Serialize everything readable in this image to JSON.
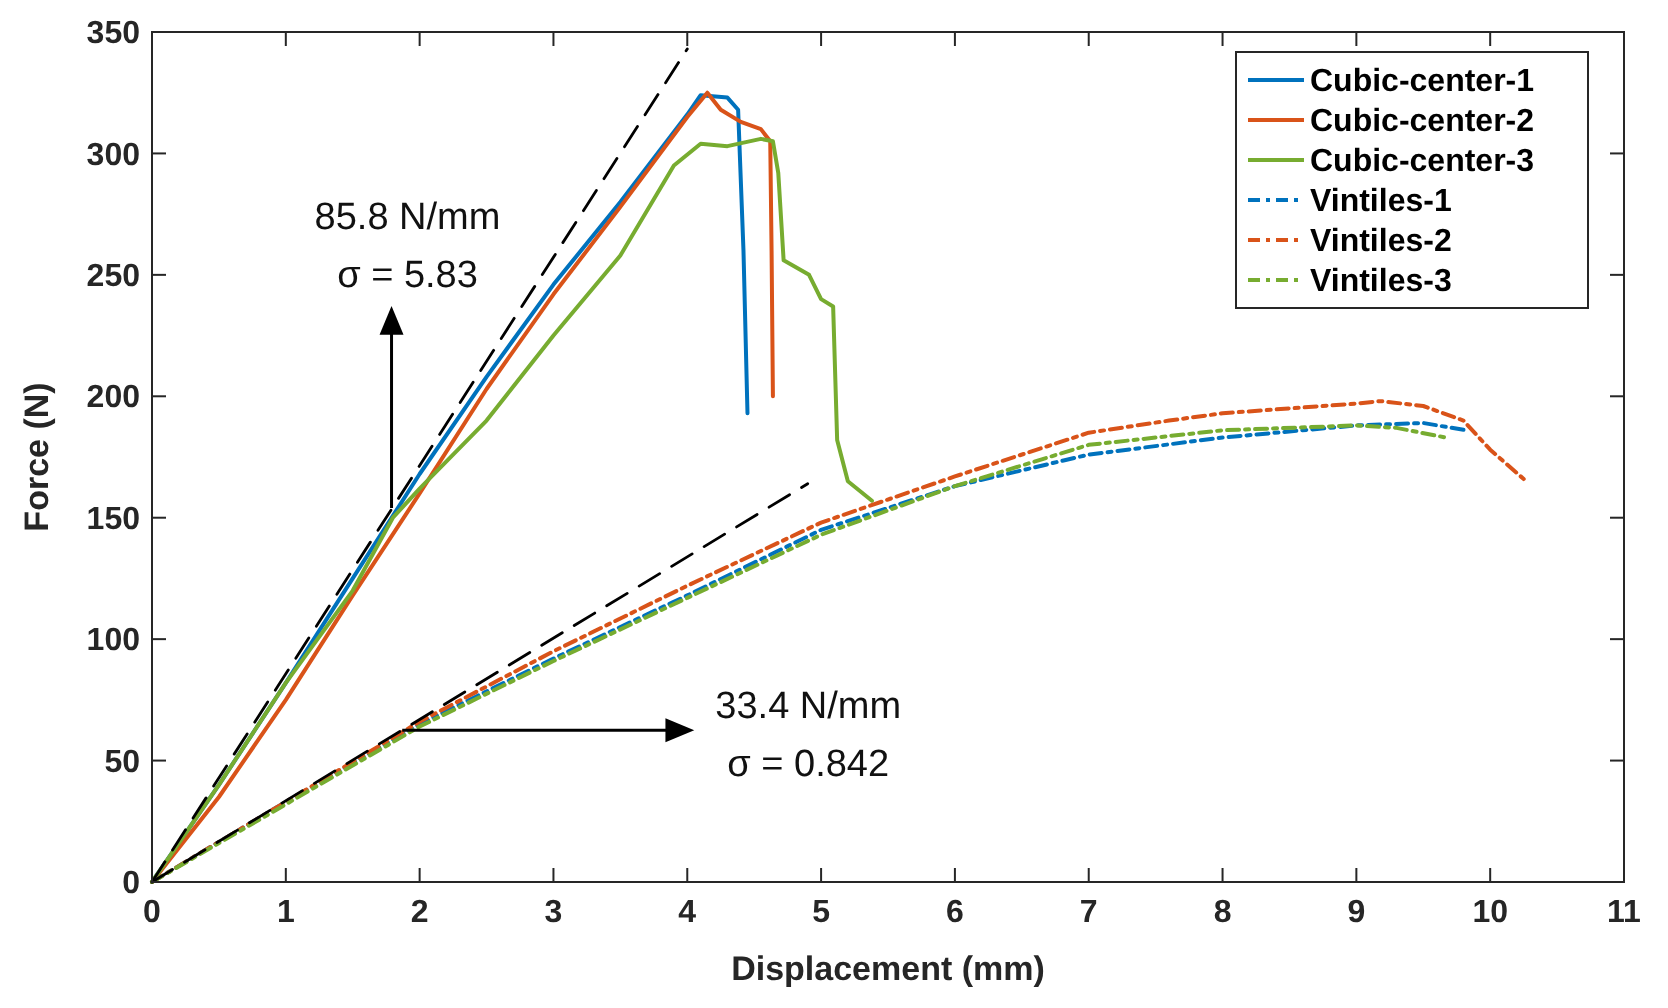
{
  "chart_data": {
    "type": "line",
    "xlabel": "Displacement (mm)",
    "ylabel": "Force (N)",
    "xlim": [
      0,
      11
    ],
    "xticks": [
      0,
      1,
      2,
      3,
      4,
      5,
      6,
      7,
      8,
      9,
      10,
      11
    ],
    "ylim": [
      0,
      350
    ],
    "yticks": [
      0,
      50,
      100,
      150,
      200,
      250,
      300,
      350
    ],
    "legend": "top right",
    "line_style": "solid",
    "series": [
      {
        "name": "Cubic-center-1",
        "color": "#0072bd",
        "x": [
          0,
          0.5,
          1,
          1.5,
          2,
          2.5,
          3,
          3.5,
          4,
          4.1,
          4.3,
          4.38,
          4.42,
          4.45
        ],
        "values": [
          0,
          40,
          82,
          125,
          168,
          208,
          246,
          280,
          316,
          324,
          323,
          318,
          260,
          193
        ]
      },
      {
        "name": "Cubic-center-2",
        "color": "#d95319",
        "x": [
          0,
          0.5,
          1,
          1.5,
          2,
          2.5,
          3,
          3.5,
          4,
          4.15,
          4.25,
          4.4,
          4.55,
          4.62,
          4.63,
          4.64
        ],
        "values": [
          0,
          35,
          75,
          118,
          160,
          203,
          242,
          278,
          315,
          325,
          318,
          313,
          310,
          305,
          260,
          200
        ]
      },
      {
        "name": "Cubic-center-3",
        "color": "#77ac30",
        "x": [
          0,
          0.5,
          1,
          1.5,
          1.8,
          2,
          2.5,
          3,
          3.5,
          3.9,
          4.1,
          4.3,
          4.55,
          4.64,
          4.68,
          4.72,
          4.91,
          5.0,
          5.09,
          5.12,
          5.2,
          5.38
        ],
        "values": [
          0,
          40,
          82,
          120,
          150,
          162,
          190,
          225,
          258,
          295,
          304,
          303,
          306,
          305,
          292,
          256,
          250,
          240,
          237,
          182,
          165,
          157
        ]
      },
      {
        "name": "Vintiles-1",
        "color": "#0072bd",
        "line_style": "dashdot",
        "x": [
          0,
          1,
          2,
          3,
          4,
          5,
          6,
          7,
          8,
          9,
          9.5,
          9.82
        ],
        "values": [
          0,
          33,
          65,
          92,
          118,
          145,
          163,
          176,
          183,
          188,
          189,
          186
        ]
      },
      {
        "name": "Vintiles-2",
        "color": "#d95319",
        "line_style": "dashdot",
        "x": [
          0,
          1,
          2,
          3,
          4,
          5,
          6,
          7,
          7.6,
          8,
          9,
          9.18,
          9.5,
          9.8,
          10,
          10.27
        ],
        "values": [
          0,
          33,
          66,
          95,
          122,
          148,
          167,
          185,
          190,
          193,
          197,
          198,
          196,
          190,
          178,
          165
        ]
      },
      {
        "name": "Vintiles-3",
        "color": "#77ac30",
        "line_style": "dashdot",
        "x": [
          0,
          1,
          2,
          3,
          4,
          5,
          6,
          7,
          8,
          9,
          9.3,
          9.67
        ],
        "values": [
          0,
          32,
          64,
          91,
          117,
          143,
          163,
          180,
          186,
          188,
          187,
          183
        ]
      },
      {
        "color": "#000000",
        "line_style": "dashed",
        "x": [
          0,
          4
        ],
        "values": [
          0,
          343
        ]
      },
      {
        "color": "#000000",
        "line_style": "dashed",
        "x": [
          0,
          4.9
        ],
        "values": [
          0,
          164
        ]
      }
    ],
    "annotations": [
      "85.8 N/mm",
      {
        "text": "σ = 5.83",
        "x": 1.79,
        "y": 154
      },
      {
        "text": "33.4 N/mm",
        "x": 1.87,
        "y": 62.5
      },
      "σ = 0.842"
    ]
  }
}
